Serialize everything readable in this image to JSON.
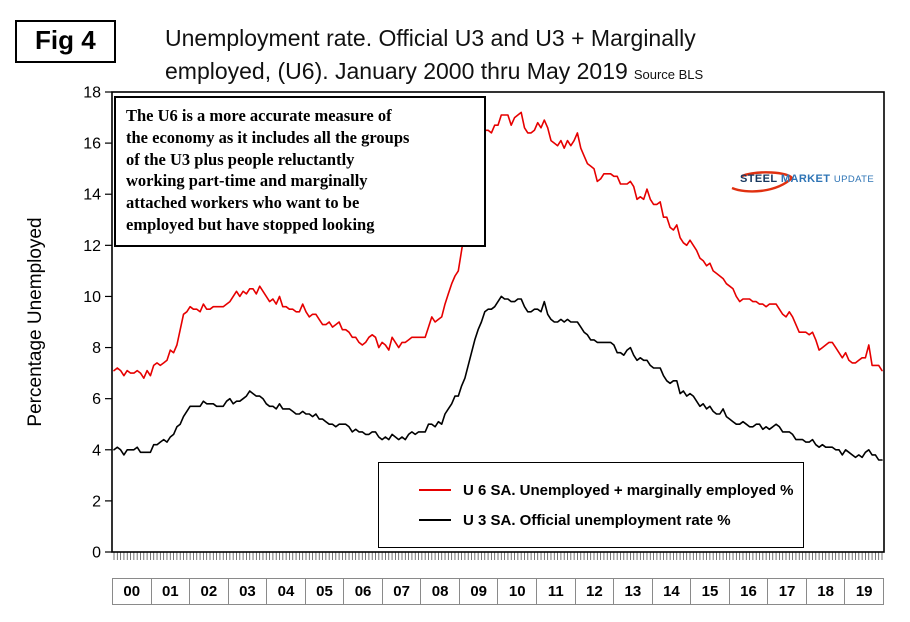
{
  "fig_label": "Fig 4",
  "title": {
    "line1": "Unemployment rate. Official U3 and U3 + Marginally",
    "line2": "employed, (U6). January 2000 thru May 2019",
    "source": "Source BLS"
  },
  "y_axis_label": "Percentage Unemployed",
  "annotation": {
    "text": "The U6 is a more accurate measure of\nthe economy as it includes all the groups\nof the U3 plus people reluctantly\nworking part-time and marginally\nattached workers who want to be\nemployed but have stopped looking"
  },
  "logo": {
    "word1": "STEEL",
    "word2": "MARKET",
    "word3": "UPDATE"
  },
  "legend": [
    {
      "label": "U 6 SA. Unemployed + marginally employed %",
      "color": "#e60000"
    },
    {
      "label": "U 3 SA. Official unemployment rate %",
      "color": "#000000"
    }
  ],
  "chart_data": {
    "type": "line",
    "title": "Unemployment rate. Official U3 and U3 + Marginally employed, (U6). January 2000 thru May 2019",
    "xlabel": "",
    "ylabel": "Percentage Unemployed",
    "ylim": [
      0,
      18
    ],
    "ytick_step": 2,
    "grid": false,
    "legend_position": "inside bottom center",
    "x_frequency": "monthly",
    "x_start": "2000-01",
    "x_end": "2019-05",
    "x_year_labels": [
      "00",
      "01",
      "02",
      "03",
      "04",
      "05",
      "06",
      "07",
      "08",
      "09",
      "10",
      "11",
      "12",
      "13",
      "14",
      "15",
      "16",
      "17",
      "18",
      "19"
    ],
    "series": [
      {
        "name": "U 6 SA. Unemployed + marginally employed %",
        "color": "#e60000",
        "values": [
          7.1,
          7.2,
          7.1,
          6.9,
          7.1,
          7.0,
          7.0,
          7.1,
          7.0,
          6.8,
          7.1,
          6.9,
          7.3,
          7.4,
          7.3,
          7.4,
          7.5,
          7.9,
          7.8,
          8.1,
          8.7,
          9.3,
          9.4,
          9.6,
          9.5,
          9.5,
          9.4,
          9.7,
          9.5,
          9.5,
          9.6,
          9.6,
          9.6,
          9.6,
          9.7,
          9.8,
          10.0,
          10.2,
          10.0,
          10.2,
          10.1,
          10.3,
          10.3,
          10.1,
          10.4,
          10.2,
          10.0,
          9.8,
          9.9,
          9.7,
          10.0,
          9.6,
          9.6,
          9.5,
          9.5,
          9.4,
          9.4,
          9.7,
          9.4,
          9.2,
          9.3,
          9.3,
          9.1,
          8.9,
          8.9,
          9.0,
          8.8,
          8.9,
          9.0,
          8.7,
          8.7,
          8.6,
          8.4,
          8.4,
          8.2,
          8.1,
          8.2,
          8.4,
          8.5,
          8.4,
          8.0,
          8.2,
          8.1,
          7.9,
          8.4,
          8.2,
          8.0,
          8.2,
          8.2,
          8.3,
          8.4,
          8.4,
          8.4,
          8.4,
          8.4,
          8.8,
          9.2,
          9.0,
          9.1,
          9.2,
          9.7,
          10.1,
          10.5,
          10.8,
          11.0,
          11.8,
          12.6,
          13.6,
          14.2,
          15.2,
          15.8,
          15.9,
          16.5,
          16.5,
          16.4,
          16.7,
          16.7,
          17.1,
          17.1,
          17.1,
          16.7,
          17.0,
          17.1,
          17.2,
          16.6,
          16.4,
          16.4,
          16.5,
          16.8,
          16.6,
          16.9,
          16.6,
          16.1,
          16.0,
          15.9,
          16.1,
          15.8,
          16.1,
          15.9,
          16.1,
          16.4,
          15.8,
          15.5,
          15.2,
          15.1,
          15.0,
          14.5,
          14.6,
          14.8,
          14.8,
          14.8,
          14.7,
          14.7,
          14.4,
          14.4,
          14.4,
          14.5,
          14.3,
          13.8,
          13.9,
          13.8,
          14.2,
          13.8,
          13.6,
          13.6,
          13.7,
          13.1,
          13.1,
          12.7,
          12.6,
          12.8,
          12.3,
          12.1,
          12.0,
          12.2,
          12.0,
          11.8,
          11.5,
          11.4,
          11.2,
          11.3,
          11.0,
          10.9,
          10.8,
          10.7,
          10.5,
          10.4,
          10.3,
          10.0,
          9.8,
          9.9,
          9.9,
          9.9,
          9.8,
          9.8,
          9.7,
          9.7,
          9.6,
          9.7,
          9.7,
          9.7,
          9.5,
          9.3,
          9.2,
          9.4,
          9.2,
          8.9,
          8.6,
          8.6,
          8.6,
          8.5,
          8.6,
          8.3,
          7.9,
          8.0,
          8.1,
          8.2,
          8.2,
          8.0,
          7.8,
          7.6,
          7.8,
          7.5,
          7.4,
          7.4,
          7.5,
          7.6,
          7.6,
          8.1,
          7.3,
          7.3,
          7.3,
          7.1
        ]
      },
      {
        "name": "U 3 SA. Official unemployment rate %",
        "color": "#000000",
        "values": [
          4.0,
          4.1,
          4.0,
          3.8,
          4.0,
          4.0,
          4.0,
          4.1,
          3.9,
          3.9,
          3.9,
          3.9,
          4.2,
          4.2,
          4.3,
          4.4,
          4.3,
          4.5,
          4.6,
          4.9,
          5.0,
          5.3,
          5.5,
          5.7,
          5.7,
          5.7,
          5.7,
          5.9,
          5.8,
          5.8,
          5.8,
          5.7,
          5.7,
          5.7,
          5.9,
          6.0,
          5.8,
          5.9,
          5.9,
          6.0,
          6.1,
          6.3,
          6.2,
          6.1,
          6.1,
          6.0,
          5.8,
          5.7,
          5.7,
          5.6,
          5.8,
          5.6,
          5.6,
          5.6,
          5.5,
          5.4,
          5.4,
          5.5,
          5.4,
          5.4,
          5.3,
          5.4,
          5.2,
          5.2,
          5.1,
          5.0,
          5.0,
          4.9,
          5.0,
          5.0,
          5.0,
          4.9,
          4.7,
          4.8,
          4.7,
          4.7,
          4.6,
          4.6,
          4.7,
          4.7,
          4.5,
          4.4,
          4.5,
          4.4,
          4.6,
          4.5,
          4.4,
          4.5,
          4.4,
          4.6,
          4.7,
          4.6,
          4.7,
          4.7,
          4.7,
          5.0,
          5.0,
          4.9,
          5.1,
          5.0,
          5.4,
          5.6,
          5.8,
          6.1,
          6.1,
          6.5,
          6.8,
          7.3,
          7.8,
          8.3,
          8.7,
          9.0,
          9.4,
          9.5,
          9.5,
          9.6,
          9.8,
          10.0,
          9.9,
          9.9,
          9.8,
          9.8,
          9.9,
          9.9,
          9.6,
          9.4,
          9.4,
          9.5,
          9.5,
          9.4,
          9.8,
          9.3,
          9.1,
          9.0,
          9.0,
          9.1,
          9.0,
          9.1,
          9.0,
          9.0,
          9.0,
          8.8,
          8.6,
          8.5,
          8.3,
          8.3,
          8.2,
          8.2,
          8.2,
          8.2,
          8.2,
          8.1,
          7.8,
          7.8,
          7.7,
          7.9,
          8.0,
          7.7,
          7.5,
          7.6,
          7.5,
          7.5,
          7.3,
          7.2,
          7.2,
          7.2,
          6.9,
          6.7,
          6.6,
          6.7,
          6.7,
          6.2,
          6.3,
          6.1,
          6.2,
          6.1,
          5.9,
          5.7,
          5.8,
          5.6,
          5.7,
          5.5,
          5.4,
          5.4,
          5.6,
          5.3,
          5.2,
          5.1,
          5.0,
          5.0,
          5.1,
          5.0,
          4.9,
          4.9,
          5.0,
          5.0,
          4.8,
          4.9,
          4.8,
          4.9,
          5.0,
          4.9,
          4.7,
          4.7,
          4.7,
          4.6,
          4.4,
          4.4,
          4.4,
          4.3,
          4.3,
          4.4,
          4.2,
          4.1,
          4.2,
          4.1,
          4.1,
          4.1,
          4.0,
          4.0,
          3.8,
          4.0,
          3.9,
          3.8,
          3.7,
          3.8,
          3.7,
          3.9,
          4.0,
          3.8,
          3.8,
          3.6,
          3.6
        ]
      }
    ]
  }
}
